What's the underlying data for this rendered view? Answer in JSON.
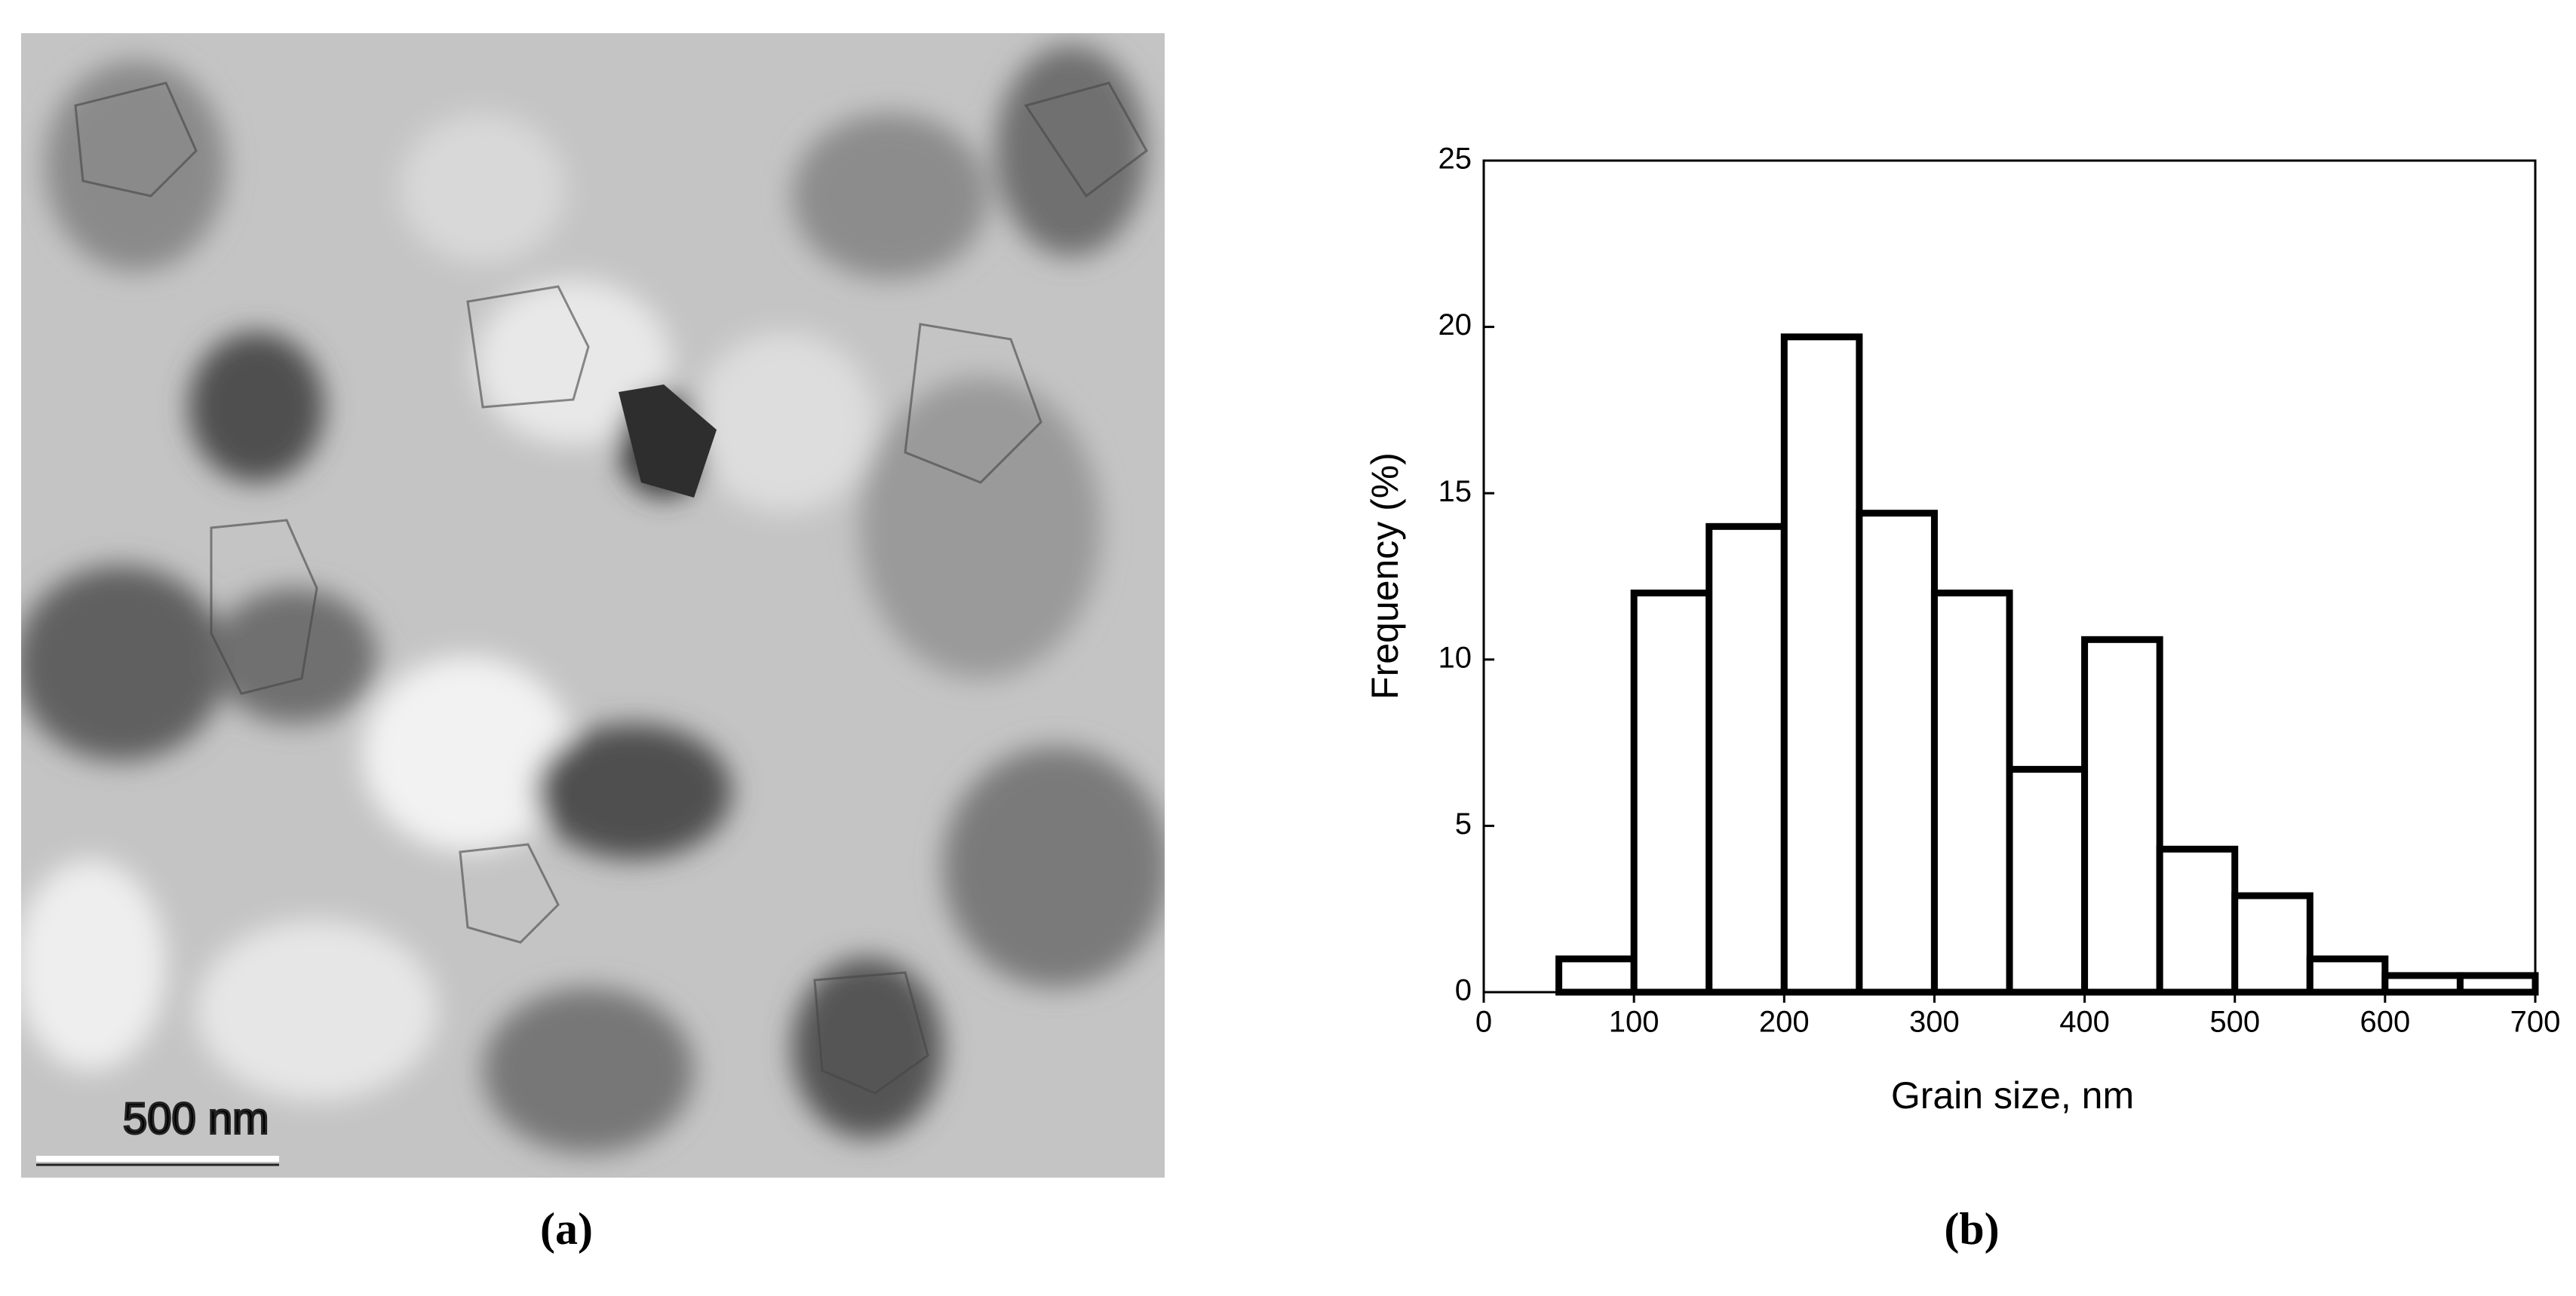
{
  "figure": {
    "scale_bar": "500 nm",
    "panel_a_label": "(a)",
    "panel_b_label": "(b)"
  },
  "chart_data": {
    "type": "histogram",
    "x_label": "Grain size, nm",
    "y_label": "Frequency (%)",
    "bins": [
      50,
      100,
      150,
      200,
      250,
      300,
      350,
      400,
      450,
      500,
      550,
      600,
      650,
      700
    ],
    "values": [
      1,
      12,
      14,
      19.7,
      14.4,
      12,
      6.7,
      10.6,
      4.3,
      2.9,
      1,
      0.5,
      0.5
    ],
    "color": "#ffffff",
    "edge_color": "#000000",
    "xlim": [
      0,
      700
    ],
    "xticks": [
      0,
      100,
      200,
      300,
      400,
      500,
      600,
      700
    ],
    "ylim": [
      0,
      25
    ],
    "yticks": [
      0,
      5,
      10,
      15,
      20,
      25
    ],
    "grid": false
  }
}
